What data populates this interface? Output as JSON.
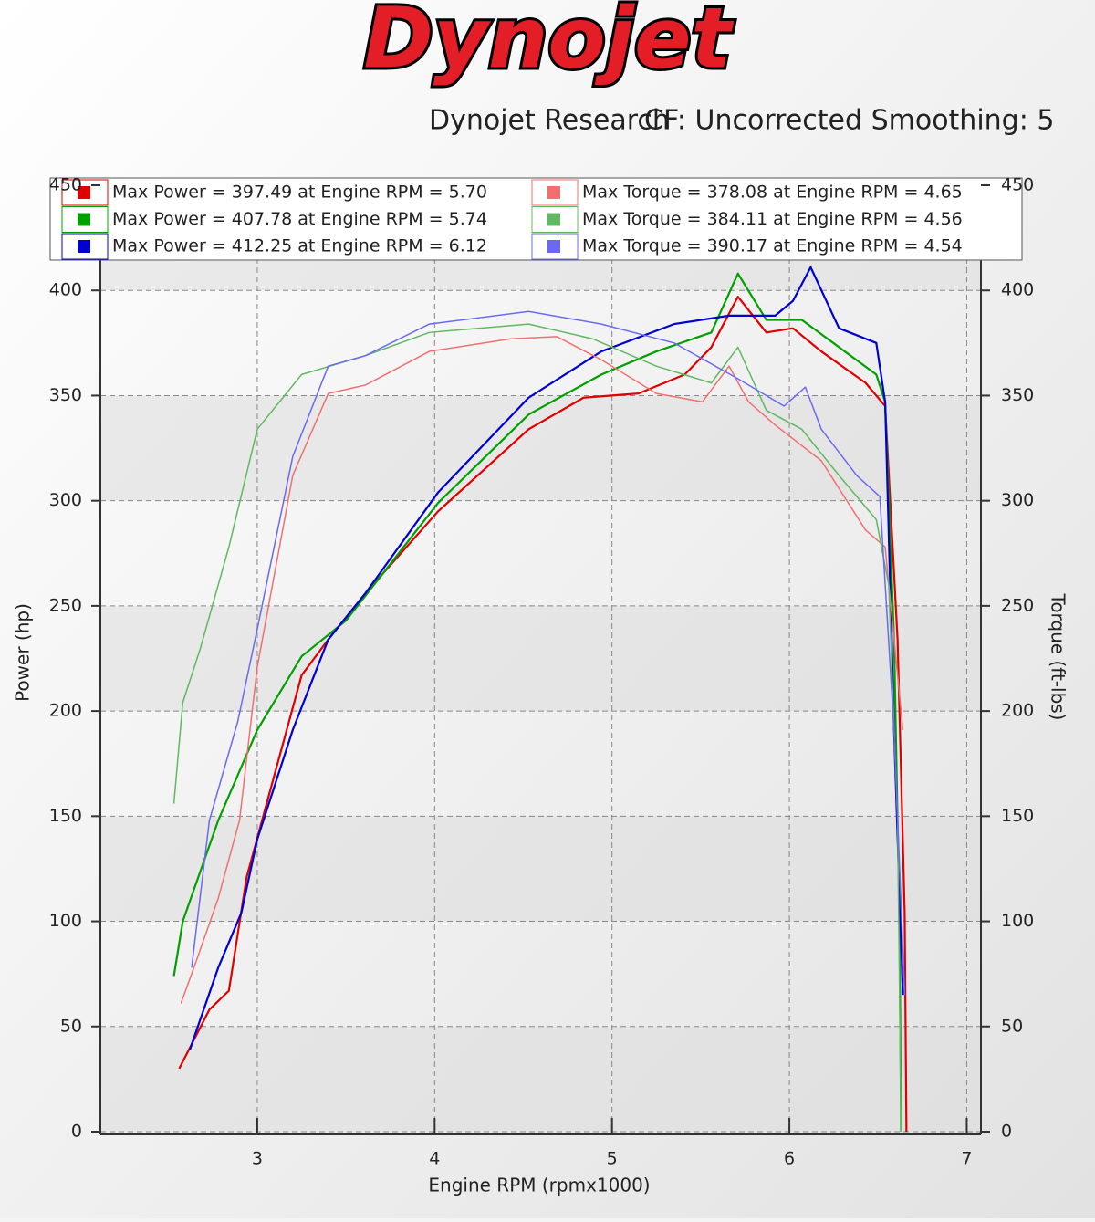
{
  "chart_data": {
    "type": "line",
    "logo": "Dynojet",
    "title": "Dynojet Research",
    "subtitle": "CF: Uncorrected Smoothing: 5",
    "x_label": "Engine RPM (rpmx1000)",
    "y_label": "Power (hp)",
    "y2_label": "Torque (ft-lbs)",
    "xlim": [
      2.1,
      7.08
    ],
    "xticks": [
      3,
      4,
      5,
      6,
      7
    ],
    "ylim": [
      0,
      450
    ],
    "yticks": [
      0,
      50,
      100,
      150,
      200,
      250,
      300,
      350,
      400,
      450
    ],
    "y2lim": [
      0,
      450
    ],
    "y2ticks": [
      0,
      50,
      100,
      150,
      200,
      250,
      300,
      350,
      400,
      450
    ],
    "grid": true,
    "series": [
      {
        "name": "Max Power = 397.49 at Engine RPM = 5.70",
        "color": "#e00000",
        "axis": "y",
        "x": [
          2.56,
          2.73,
          2.84,
          2.94,
          3.04,
          3.25,
          3.4,
          3.61,
          4.02,
          4.53,
          4.84,
          5.15,
          5.41,
          5.56,
          5.71,
          5.87,
          6.02,
          6.18,
          6.43,
          6.54,
          6.61,
          6.65,
          6.66
        ],
        "values": [
          30,
          58,
          67,
          121,
          152,
          217,
          234,
          256,
          295,
          334,
          349,
          351,
          360,
          373,
          397,
          380,
          382,
          371,
          356,
          345,
          234,
          104,
          0
        ]
      },
      {
        "name": "Max Power = 407.78 at Engine RPM = 5.74",
        "color": "#00a000",
        "axis": "y",
        "x": [
          2.53,
          2.58,
          2.78,
          3.0,
          3.25,
          3.5,
          4.02,
          4.53,
          4.94,
          5.25,
          5.56,
          5.71,
          5.87,
          6.07,
          6.28,
          6.49,
          6.54,
          6.59,
          6.62,
          6.63
        ],
        "values": [
          74,
          100,
          148,
          191,
          226,
          243,
          299,
          341,
          360,
          371,
          380,
          408,
          386,
          386,
          373,
          360,
          347,
          234,
          104,
          0
        ]
      },
      {
        "name": "Max Power = 412.25 at Engine RPM = 6.12",
        "color": "#0000d0",
        "axis": "y",
        "x": [
          2.62,
          2.78,
          2.91,
          3.0,
          3.2,
          3.4,
          3.61,
          4.02,
          4.53,
          4.94,
          5.35,
          5.66,
          5.92,
          6.02,
          6.12,
          6.28,
          6.49,
          6.54,
          6.59,
          6.64
        ],
        "values": [
          39,
          78,
          104,
          139,
          191,
          234,
          256,
          304,
          349,
          371,
          384,
          388,
          388,
          395,
          411,
          382,
          375,
          347,
          191,
          65
        ]
      },
      {
        "name": "Max Torque = 378.08 at Engine RPM = 4.65",
        "color": "#f07070",
        "axis": "y2",
        "x": [
          2.57,
          2.66,
          2.78,
          2.9,
          3.0,
          3.2,
          3.4,
          3.61,
          3.97,
          4.43,
          4.69,
          4.94,
          5.25,
          5.51,
          5.66,
          5.77,
          5.92,
          6.18,
          6.43,
          6.54,
          6.64
        ],
        "values": [
          61,
          82,
          111,
          148,
          221,
          312,
          351,
          355,
          371,
          377,
          378,
          367,
          351,
          347,
          364,
          347,
          336,
          319,
          286,
          278,
          191
        ]
      },
      {
        "name": "Max Torque = 384.11 at Engine RPM = 4.56",
        "color": "#60b860",
        "axis": "y2",
        "x": [
          2.53,
          2.58,
          2.68,
          2.84,
          3.0,
          3.25,
          3.61,
          3.97,
          4.53,
          4.89,
          5.25,
          5.56,
          5.71,
          5.87,
          6.07,
          6.28,
          6.49,
          6.56,
          6.61,
          6.63
        ],
        "values": [
          156,
          204,
          230,
          278,
          334,
          360,
          369,
          380,
          384,
          377,
          364,
          356,
          373,
          343,
          334,
          312,
          291,
          260,
          148,
          0
        ]
      },
      {
        "name": "Max Torque = 390.17 at Engine RPM = 4.54",
        "color": "#6a6af0",
        "axis": "y2",
        "x": [
          2.63,
          2.73,
          2.89,
          3.0,
          3.2,
          3.4,
          3.61,
          3.97,
          4.53,
          4.94,
          5.35,
          5.71,
          5.97,
          6.09,
          6.18,
          6.38,
          6.51,
          6.59,
          6.65
        ],
        "values": [
          78,
          148,
          195,
          239,
          321,
          364,
          369,
          384,
          390,
          384,
          375,
          358,
          345,
          354,
          334,
          312,
          302,
          191,
          65
        ]
      }
    ]
  }
}
